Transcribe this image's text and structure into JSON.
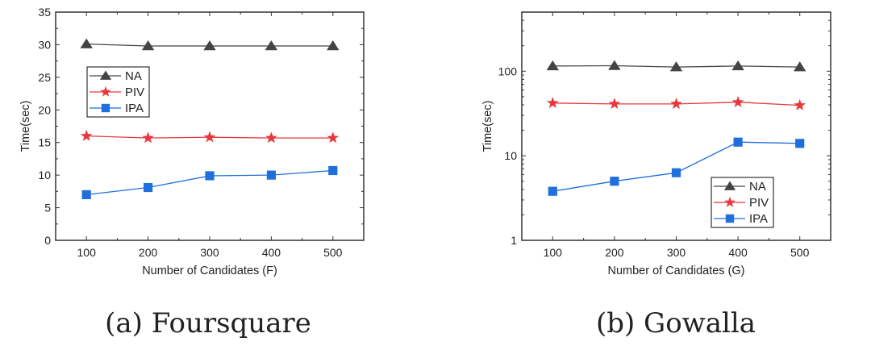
{
  "colors": {
    "NA": "#444444",
    "PIV": "#e8383d",
    "IPA": "#1f6fdc"
  },
  "chart_data": [
    {
      "type": "line",
      "caption": "(a) Foursquare",
      "xlabel": "Number of Candidates (F)",
      "ylabel": "Time(sec)",
      "x": [
        100,
        200,
        300,
        400,
        500
      ],
      "xticks": [
        "100",
        "200",
        "300",
        "400",
        "500"
      ],
      "yticks": [
        "0",
        "5",
        "10",
        "15",
        "20",
        "25",
        "30",
        "35"
      ],
      "yscale": "linear",
      "ylim": [
        0,
        35
      ],
      "xlim": [
        50,
        550
      ],
      "legend_position": "upper-left",
      "series": [
        {
          "name": "NA",
          "marker": "triangle",
          "values": [
            30.1,
            29.8,
            29.8,
            29.8,
            29.8
          ]
        },
        {
          "name": "PIV",
          "marker": "star",
          "values": [
            16.0,
            15.7,
            15.8,
            15.7,
            15.7
          ]
        },
        {
          "name": "IPA",
          "marker": "square",
          "values": [
            7.0,
            8.1,
            9.9,
            10.0,
            10.7
          ]
        }
      ]
    },
    {
      "type": "line",
      "caption": "(b) Gowalla",
      "xlabel": "Number of Candidates (G)",
      "ylabel": "Time(sec)",
      "x": [
        100,
        200,
        300,
        400,
        500
      ],
      "xticks": [
        "100",
        "200",
        "300",
        "400",
        "500"
      ],
      "yticks": [
        "1",
        "10",
        "100"
      ],
      "yscale": "log",
      "ylim": [
        1,
        500
      ],
      "xlim": [
        50,
        550
      ],
      "legend_position": "lower-right",
      "series": [
        {
          "name": "NA",
          "marker": "triangle",
          "values": [
            115,
            116,
            112,
            115,
            112
          ]
        },
        {
          "name": "PIV",
          "marker": "star",
          "values": [
            42,
            41,
            41,
            43,
            39.5
          ]
        },
        {
          "name": "IPA",
          "marker": "square",
          "values": [
            3.8,
            5.0,
            6.3,
            14.5,
            14.0
          ]
        }
      ]
    }
  ]
}
